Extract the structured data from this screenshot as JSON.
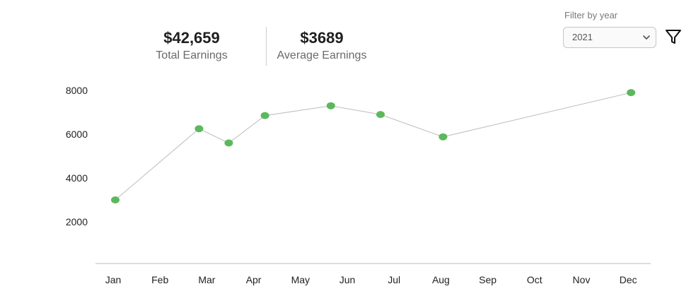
{
  "stats": {
    "total_value": "$42,659",
    "total_label": "Total Earnings",
    "average_value": "$3689",
    "average_label": "Average Earnings"
  },
  "filter": {
    "label": "Filter by year",
    "selected_year": "2021",
    "icon": "filter-funnel-icon"
  },
  "chart_data": {
    "type": "line",
    "title": "",
    "xlabel": "",
    "ylabel": "",
    "categories": [
      "Jan",
      "Feb",
      "Mar",
      "Apr",
      "May",
      "Jun",
      "Jul",
      "Aug",
      "Sep",
      "Oct",
      "Nov",
      "Dec"
    ],
    "yticks": [
      2000,
      4000,
      6000,
      8000
    ],
    "ylim": [
      0,
      8200
    ],
    "grid": false,
    "legend": "none",
    "series": [
      {
        "points": [
          {
            "x": "Jan",
            "y": 3000
          },
          {
            "x": "Mar",
            "y": 6250
          },
          {
            "x": "Mar",
            "y": 5600
          },
          {
            "x": "Apr",
            "y": 6850
          },
          {
            "x": "May",
            "y": 7300
          },
          {
            "x": "Jun",
            "y": 6900
          },
          {
            "x": "Aug",
            "y": 5880
          },
          {
            "x": "Dec",
            "y": 7900
          }
        ]
      }
    ],
    "colors": {
      "line": "#bdbdbd",
      "marker": "#5cb85c",
      "axis": "#bdbdbd"
    }
  }
}
